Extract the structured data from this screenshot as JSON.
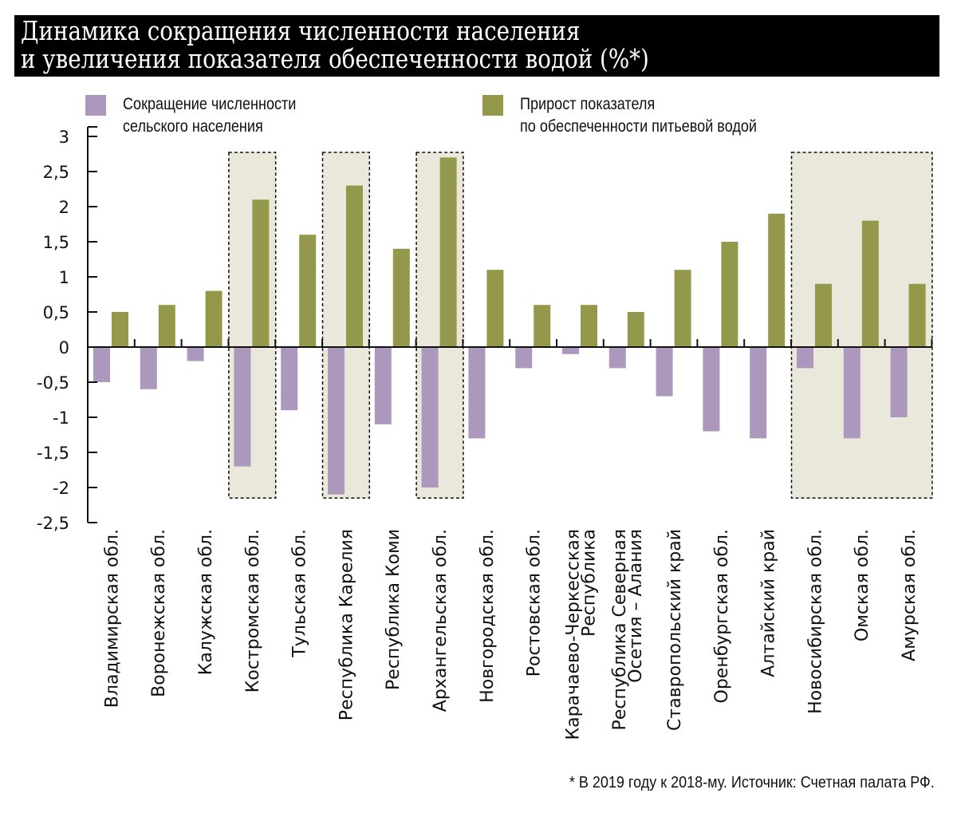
{
  "title": {
    "line1": "Динамика сокращения численности населения",
    "line2": "и увеличения показателя обеспеченности водой (%*)"
  },
  "legend": [
    {
      "label_line1": "Сокращение численности",
      "label_line2": "сельского населения",
      "color": "#ad98bd"
    },
    {
      "label_line1": "Прирост показателя",
      "label_line2": "по обеспеченности питьевой водой",
      "color": "#93984a"
    }
  ],
  "footer": "* В 2019 году к 2018-му.  Источник: Счетная палата РФ.",
  "colors": {
    "highlight_fill": "#eae8da",
    "axis": "#111111"
  },
  "chart_data": {
    "type": "bar",
    "title": "Динамика сокращения численности населения и увеличения показателя обеспеченности водой (%*)",
    "xlabel": "",
    "ylabel": "",
    "ylim": [
      -2.5,
      3
    ],
    "yticks": [
      3,
      2.5,
      2,
      1.5,
      1,
      0.5,
      0,
      -0.5,
      -1,
      -1.5,
      -2,
      -2.5
    ],
    "ytick_labels": [
      "3",
      "2,5",
      "2",
      "1,5",
      "1",
      "0,5",
      "0",
      "-0,5",
      "-1",
      "-1,5",
      "-2",
      "-2,5"
    ],
    "grid": false,
    "legend_position": "top",
    "categories": [
      [
        "Владимирская обл."
      ],
      [
        "Воронежская обл."
      ],
      [
        "Калужская обл."
      ],
      [
        "Костромская обл."
      ],
      [
        "Тульская обл."
      ],
      [
        "Республика Карелия"
      ],
      [
        "Республика Коми"
      ],
      [
        "Архангельская обл."
      ],
      [
        "Новгородская обл."
      ],
      [
        "Ростовская обл."
      ],
      [
        "Карачаево-Черкесская",
        "Республика"
      ],
      [
        "Республика Северная",
        "Осетия – Алания"
      ],
      [
        "Ставропольский край"
      ],
      [
        "Оренбургская обл."
      ],
      [
        "Алтайский край"
      ],
      [
        "Новосибирская обл."
      ],
      [
        "Омская обл."
      ],
      [
        "Амурская обл."
      ]
    ],
    "series": [
      {
        "name": "Сокращение численности сельского населения",
        "color": "#ad98bd",
        "values": [
          -0.5,
          -0.6,
          -0.2,
          -1.7,
          -0.9,
          -2.1,
          -1.1,
          -2.0,
          -1.3,
          -0.3,
          -0.1,
          -0.3,
          -0.7,
          -1.2,
          -1.3,
          -0.3,
          -1.3,
          -1.0
        ]
      },
      {
        "name": "Прирост показателя по обеспеченности питьевой водой",
        "color": "#93984a",
        "values": [
          0.5,
          0.6,
          0.8,
          2.1,
          1.6,
          2.3,
          1.4,
          2.7,
          1.1,
          0.6,
          0.6,
          0.5,
          1.1,
          1.5,
          1.9,
          0.9,
          1.8,
          0.9
        ]
      }
    ],
    "highlighted_groups": [
      {
        "from": 3,
        "to": 3
      },
      {
        "from": 5,
        "to": 5
      },
      {
        "from": 7,
        "to": 7
      },
      {
        "from": 15,
        "to": 17
      }
    ]
  }
}
